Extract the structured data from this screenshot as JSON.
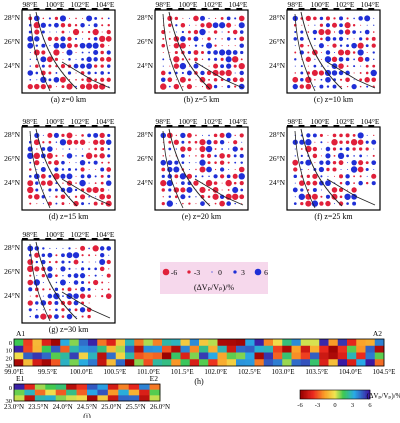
{
  "figure": {
    "panels": [
      {
        "caption": "(a) z=0 km",
        "seed": 3
      },
      {
        "caption": "(b) z=5 km",
        "seed": 7
      },
      {
        "caption": "(c) z=10 km",
        "seed": 11
      },
      {
        "caption": "(d) z=15 km",
        "seed": 13
      },
      {
        "caption": "(e) z=20 km",
        "seed": 17
      },
      {
        "caption": "(f) z=25 km",
        "seed": 19
      },
      {
        "caption": "(g) z=30 km",
        "seed": 23
      }
    ],
    "lon_ticks": [
      "98°E",
      "100°E",
      "102°E",
      "104°E"
    ],
    "lat_ticks": [
      "28°N",
      "26°N",
      "24°N"
    ],
    "map_legend": {
      "values": [
        "-6",
        "-3",
        "0",
        "3",
        "6"
      ],
      "label": "(ΔVₚ/Vₚ)/%"
    },
    "profile_h": {
      "start_label": "A1",
      "end_label": "A2",
      "depth_axis_label": "深度/km",
      "depth_ticks": [
        "0",
        "10",
        "20",
        "30"
      ],
      "x_ticks": [
        "99.0°E",
        "99.5°E",
        "100.0°E",
        "100.5°E",
        "101.0°E",
        "101.5°E",
        "102.0°E",
        "102.5°E",
        "103.0°E",
        "103.5°E",
        "104.0°E",
        "104.5°E"
      ],
      "caption": "(h)"
    },
    "profile_i": {
      "start_label": "E1",
      "end_label": "E2",
      "depth_axis_label": "深度/km",
      "depth_ticks": [
        "0",
        "30"
      ],
      "x_ticks": [
        "23.0°N",
        "23.5°N",
        "24.0°N",
        "24.5°N",
        "25.0°N",
        "25.5°N",
        "26.0°N"
      ],
      "caption": "(i)"
    },
    "colorbar": {
      "ticks": [
        "-6",
        "-3",
        "0",
        "3",
        "6"
      ],
      "label": "(ΔVₚ/Vₚ)/%"
    },
    "colors": {
      "positive": "#1f2fd6",
      "negative": "#e0203a",
      "legend_bg": "#f6d8ec"
    }
  }
}
